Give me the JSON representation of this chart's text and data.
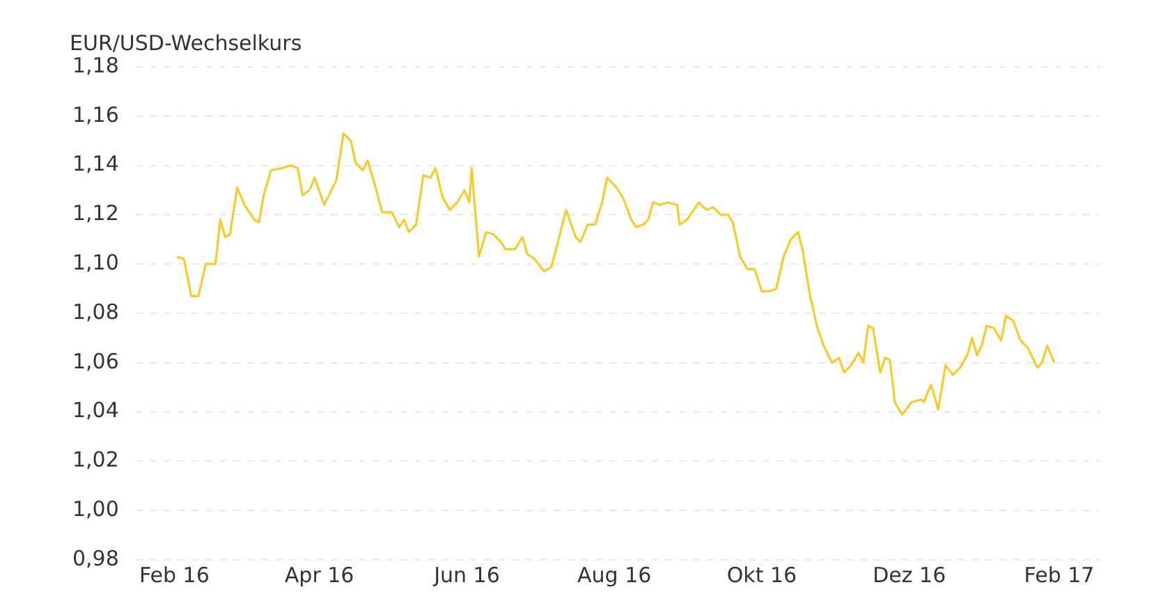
{
  "chart_data": {
    "type": "line",
    "ylabel": "EUR/USD-Wechselkurs",
    "x": [
      "2016-02-02",
      "2016-02-05",
      "2016-02-08",
      "2016-02-11",
      "2016-02-14",
      "2016-02-18",
      "2016-02-20",
      "2016-02-22",
      "2016-02-24",
      "2016-02-27",
      "2016-03-01",
      "2016-03-05",
      "2016-03-07",
      "2016-03-09",
      "2016-03-12",
      "2016-03-17",
      "2016-03-20",
      "2016-03-23",
      "2016-03-25",
      "2016-03-28",
      "2016-03-30",
      "2016-04-03",
      "2016-04-08",
      "2016-04-11",
      "2016-04-14",
      "2016-04-16",
      "2016-04-19",
      "2016-04-21",
      "2016-04-24",
      "2016-04-27",
      "2016-05-01",
      "2016-05-04",
      "2016-05-06",
      "2016-05-08",
      "2016-05-11",
      "2016-05-14",
      "2016-05-17",
      "2016-05-19",
      "2016-05-22",
      "2016-05-25",
      "2016-05-28",
      "2016-05-31",
      "2016-06-02",
      "2016-06-03",
      "2016-06-06",
      "2016-06-09",
      "2016-06-12",
      "2016-06-15",
      "2016-06-17",
      "2016-06-21",
      "2016-06-24",
      "2016-06-26",
      "2016-06-29",
      "2016-07-03",
      "2016-07-06",
      "2016-07-09",
      "2016-07-12",
      "2016-07-16",
      "2016-07-18",
      "2016-07-21",
      "2016-07-24",
      "2016-07-27",
      "2016-07-29",
      "2016-08-02",
      "2016-08-05",
      "2016-08-08",
      "2016-08-10",
      "2016-08-13",
      "2016-08-15",
      "2016-08-17",
      "2016-08-20",
      "2016-08-23",
      "2016-08-27",
      "2016-08-28",
      "2016-08-31",
      "2016-09-05",
      "2016-09-08",
      "2016-09-11",
      "2016-09-14",
      "2016-09-17",
      "2016-09-19",
      "2016-09-22",
      "2016-09-25",
      "2016-09-28",
      "2016-10-01",
      "2016-10-04",
      "2016-10-07",
      "2016-10-10",
      "2016-10-13",
      "2016-10-16",
      "2016-10-18",
      "2016-10-21",
      "2016-10-24",
      "2016-10-27",
      "2016-10-30",
      "2016-11-02",
      "2016-11-04",
      "2016-11-07",
      "2016-11-10",
      "2016-11-12",
      "2016-11-14",
      "2016-11-16",
      "2016-11-19",
      "2016-11-21",
      "2016-11-23",
      "2016-11-25",
      "2016-11-28",
      "2016-12-02",
      "2016-12-06",
      "2016-12-07",
      "2016-12-10",
      "2016-12-13",
      "2016-12-16",
      "2016-12-19",
      "2016-12-22",
      "2016-12-25",
      "2016-12-27",
      "2016-12-29",
      "2016-12-31",
      "2017-01-02",
      "2017-01-05",
      "2017-01-08",
      "2017-01-10",
      "2017-01-13",
      "2017-01-16",
      "2017-01-19",
      "2017-01-23",
      "2017-01-25",
      "2017-01-27",
      "2017-01-30"
    ],
    "series": [
      {
        "color": "#f7ca2e",
        "values": [
          1.103,
          1.102,
          1.087,
          1.087,
          1.1,
          1.1,
          1.118,
          1.111,
          1.112,
          1.131,
          1.124,
          1.118,
          1.117,
          1.128,
          1.138,
          1.139,
          1.14,
          1.139,
          1.128,
          1.13,
          1.135,
          1.124,
          1.134,
          1.153,
          1.15,
          1.141,
          1.138,
          1.142,
          1.132,
          1.121,
          1.121,
          1.115,
          1.118,
          1.113,
          1.116,
          1.136,
          1.135,
          1.139,
          1.127,
          1.122,
          1.125,
          1.13,
          1.125,
          1.139,
          1.103,
          1.113,
          1.112,
          1.109,
          1.106,
          1.106,
          1.111,
          1.104,
          1.102,
          1.097,
          1.099,
          1.11,
          1.122,
          1.111,
          1.109,
          1.116,
          1.116,
          1.125,
          1.135,
          1.131,
          1.126,
          1.118,
          1.115,
          1.116,
          1.118,
          1.125,
          1.124,
          1.125,
          1.124,
          1.116,
          1.118,
          1.125,
          1.122,
          1.123,
          1.12,
          1.12,
          1.117,
          1.103,
          1.098,
          1.098,
          1.089,
          1.089,
          1.09,
          1.103,
          1.11,
          1.113,
          1.105,
          1.087,
          1.074,
          1.066,
          1.06,
          1.062,
          1.056,
          1.059,
          1.064,
          1.06,
          1.075,
          1.074,
          1.056,
          1.062,
          1.061,
          1.044,
          1.039,
          1.044,
          1.045,
          1.044,
          1.051,
          1.041,
          1.059,
          1.055,
          1.058,
          1.063,
          1.07,
          1.063,
          1.067,
          1.075,
          1.074,
          1.069,
          1.079,
          1.077,
          1.069,
          1.066,
          1.058,
          1.06,
          1.067,
          1.06
        ]
      }
    ],
    "xlim": [
      "2016-01-16",
      "2017-02-18"
    ],
    "xticks": [
      {
        "value": "2016-02-01",
        "label": "Feb 16"
      },
      {
        "value": "2016-04-01",
        "label": "Apr 16"
      },
      {
        "value": "2016-06-01",
        "label": "Jun 16"
      },
      {
        "value": "2016-08-01",
        "label": "Aug 16"
      },
      {
        "value": "2016-10-01",
        "label": "Okt 16"
      },
      {
        "value": "2016-12-01",
        "label": "Dez 16"
      },
      {
        "value": "2017-02-01",
        "label": "Feb 17"
      }
    ],
    "ylim": [
      0.98,
      1.18
    ],
    "yticks": [
      {
        "value": 0.98,
        "label": "0,98"
      },
      {
        "value": 1.0,
        "label": "1,00"
      },
      {
        "value": 1.02,
        "label": "1,02"
      },
      {
        "value": 1.04,
        "label": "1,04"
      },
      {
        "value": 1.06,
        "label": "1,06"
      },
      {
        "value": 1.08,
        "label": "1,08"
      },
      {
        "value": 1.1,
        "label": "1,10"
      },
      {
        "value": 1.12,
        "label": "1,12"
      },
      {
        "value": 1.14,
        "label": "1,14"
      },
      {
        "value": 1.16,
        "label": "1,16"
      },
      {
        "value": 1.18,
        "label": "1,18"
      }
    ],
    "grid": "y",
    "marker": "none",
    "line_style": "solid"
  }
}
